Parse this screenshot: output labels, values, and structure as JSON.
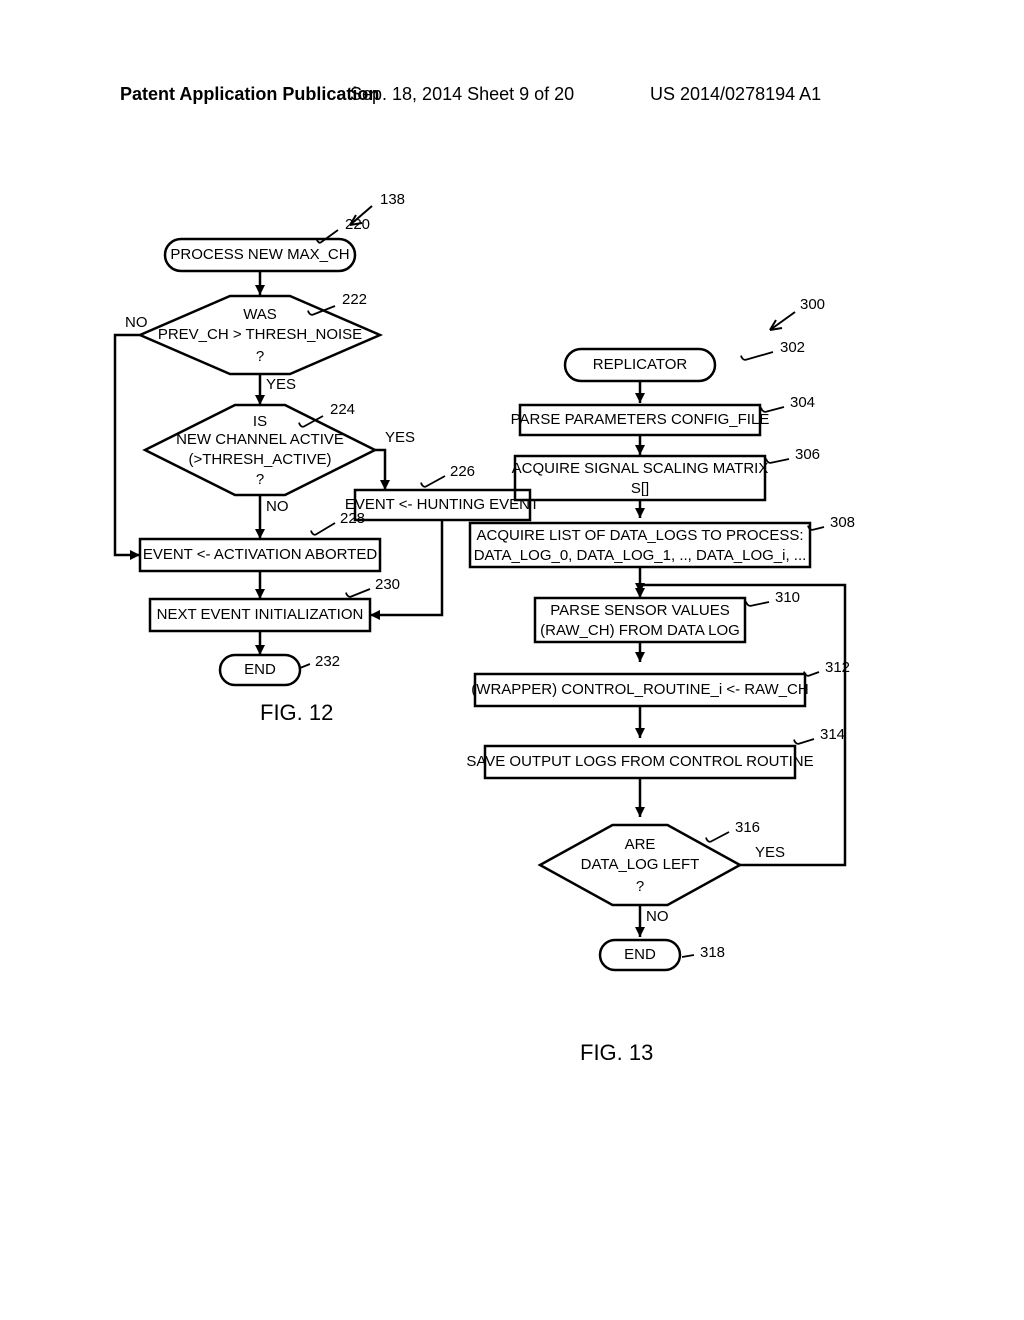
{
  "header": {
    "left": "Patent Application Publication",
    "center": "Sep. 18, 2014  Sheet 9 of 20",
    "right": "US 2014/0278194 A1"
  },
  "colors": {
    "stroke": "#000000",
    "fill": "#ffffff",
    "text": "#000000",
    "bg": "#ffffff"
  },
  "style": {
    "stroke_width": 2.5,
    "font_family": "Arial Narrow, Arial, sans-serif",
    "box_fontsize": 15,
    "label_fontsize": 15,
    "caption_fontsize": 22
  },
  "fig12": {
    "caption": "FIG. 12",
    "ref": "138",
    "nodes": {
      "n220": {
        "label": "220",
        "text": "PROCESS NEW MAX_CH"
      },
      "n222": {
        "label": "222",
        "text1": "WAS",
        "text2": "PREV_CH > THRESH_NOISE",
        "text3": "?",
        "no": "NO",
        "yes": "YES"
      },
      "n224": {
        "label": "224",
        "text1": "IS",
        "text2": "NEW CHANNEL ACTIVE",
        "text3": "(>THRESH_ACTIVE)",
        "text4": "?",
        "no": "NO",
        "yes": "YES"
      },
      "n226": {
        "label": "226",
        "text": "EVENT <- HUNTING EVENT"
      },
      "n228": {
        "label": "228",
        "text": "EVENT <- ACTIVATION ABORTED"
      },
      "n230": {
        "label": "230",
        "text": "NEXT EVENT INITIALIZATION"
      },
      "n232": {
        "label": "232",
        "text": "END"
      }
    }
  },
  "fig13": {
    "caption": "FIG. 13",
    "ref": "300",
    "nodes": {
      "n302": {
        "label": "302",
        "text": "REPLICATOR"
      },
      "n304": {
        "label": "304",
        "text": "PARSE PARAMETERS CONFIG_FILE"
      },
      "n306": {
        "label": "306",
        "text1": "ACQUIRE SIGNAL SCALING MATRIX",
        "text2": "S[]"
      },
      "n308": {
        "label": "308",
        "text1": "ACQUIRE LIST OF DATA_LOGS TO PROCESS:",
        "text2": "DATA_LOG_0, DATA_LOG_1, .., DATA_LOG_i, ..."
      },
      "n310": {
        "label": "310",
        "text1": "PARSE SENSOR VALUES",
        "text2": "(RAW_CH) FROM DATA LOG"
      },
      "n312": {
        "label": "312",
        "text": "(WRAPPER) CONTROL_ROUTINE_i <- RAW_CH"
      },
      "n314": {
        "label": "314",
        "text": "SAVE OUTPUT LOGS FROM CONTROL ROUTINE"
      },
      "n316": {
        "label": "316",
        "text1": "ARE",
        "text2": "DATA_LOG LEFT",
        "text3": "?",
        "no": "NO",
        "yes": "YES"
      },
      "n318": {
        "label": "318",
        "text": "END"
      }
    }
  }
}
